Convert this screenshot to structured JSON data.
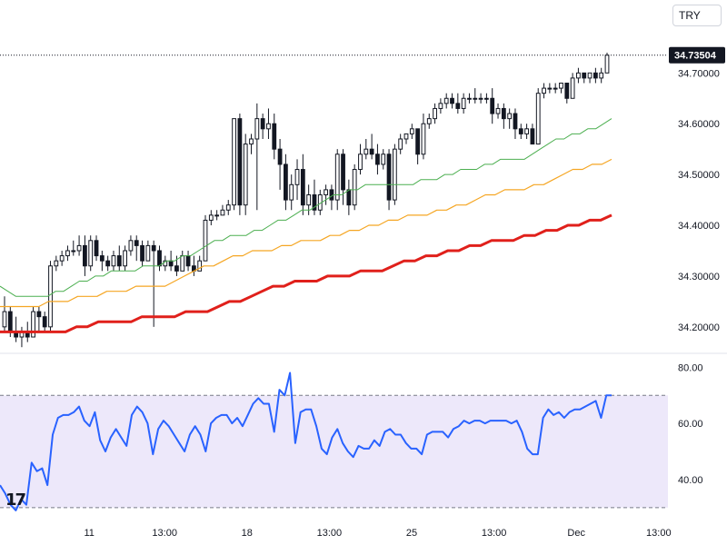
{
  "header": {
    "currency": "TRY"
  },
  "chart_data": {
    "type": "candlestick",
    "price_panel": {
      "y_ticks": [
        "34.70000",
        "34.60000",
        "34.50000",
        "34.40000",
        "34.30000",
        "34.20000"
      ],
      "y_tick_values": [
        34.7,
        34.6,
        34.5,
        34.4,
        34.3,
        34.2
      ],
      "ylim": [
        34.155,
        34.79
      ],
      "last_price_label": "34.73504",
      "last_price": 34.73504,
      "candles": [
        [
          34.2,
          34.26,
          34.19,
          34.23
        ],
        [
          34.23,
          34.24,
          34.18,
          34.19
        ],
        [
          34.19,
          34.22,
          34.17,
          34.18
        ],
        [
          34.18,
          34.2,
          34.16,
          34.19
        ],
        [
          34.19,
          34.21,
          34.17,
          34.18
        ],
        [
          34.18,
          34.24,
          34.18,
          34.23
        ],
        [
          34.23,
          34.24,
          34.19,
          34.22
        ],
        [
          34.22,
          34.23,
          34.19,
          34.2
        ],
        [
          34.2,
          34.33,
          34.19,
          34.32
        ],
        [
          34.32,
          34.34,
          34.31,
          34.33
        ],
        [
          34.33,
          34.35,
          34.32,
          34.34
        ],
        [
          34.34,
          34.36,
          34.33,
          34.35
        ],
        [
          34.35,
          34.37,
          34.34,
          34.35
        ],
        [
          34.35,
          34.38,
          34.34,
          34.36
        ],
        [
          34.36,
          34.38,
          34.3,
          34.32
        ],
        [
          34.32,
          34.38,
          34.31,
          34.37
        ],
        [
          34.37,
          34.38,
          34.33,
          34.34
        ],
        [
          34.34,
          34.35,
          34.31,
          34.33
        ],
        [
          34.33,
          34.34,
          34.31,
          34.32
        ],
        [
          34.32,
          34.35,
          34.31,
          34.34
        ],
        [
          34.34,
          34.36,
          34.31,
          34.32
        ],
        [
          34.32,
          34.36,
          34.31,
          34.35
        ],
        [
          34.35,
          34.38,
          34.34,
          34.37
        ],
        [
          34.37,
          34.38,
          34.33,
          34.36
        ],
        [
          34.36,
          34.37,
          34.32,
          34.33
        ],
        [
          34.33,
          34.37,
          34.33,
          34.36
        ],
        [
          34.36,
          34.37,
          34.2,
          34.35
        ],
        [
          34.35,
          34.36,
          34.31,
          34.32
        ],
        [
          34.32,
          34.34,
          34.31,
          34.33
        ],
        [
          34.33,
          34.35,
          34.31,
          34.32
        ],
        [
          34.32,
          34.34,
          34.3,
          34.31
        ],
        [
          34.31,
          34.35,
          34.31,
          34.34
        ],
        [
          34.34,
          34.35,
          34.31,
          34.32
        ],
        [
          34.32,
          34.34,
          34.3,
          34.31
        ],
        [
          34.31,
          34.34,
          34.31,
          34.33
        ],
        [
          34.33,
          34.42,
          34.33,
          34.41
        ],
        [
          34.41,
          34.43,
          34.4,
          34.42
        ],
        [
          34.42,
          34.43,
          34.41,
          34.42
        ],
        [
          34.42,
          34.44,
          34.42,
          34.43
        ],
        [
          34.43,
          34.45,
          34.42,
          34.44
        ],
        [
          34.44,
          34.61,
          34.43,
          34.61
        ],
        [
          34.61,
          34.62,
          34.42,
          34.44
        ],
        [
          34.44,
          34.58,
          34.42,
          34.56
        ],
        [
          34.56,
          34.58,
          34.54,
          34.57
        ],
        [
          34.57,
          34.64,
          34.43,
          34.61
        ],
        [
          34.61,
          34.62,
          34.57,
          34.59
        ],
        [
          34.59,
          34.63,
          34.57,
          34.6
        ],
        [
          34.6,
          34.62,
          34.53,
          34.55
        ],
        [
          34.55,
          34.57,
          34.47,
          34.52
        ],
        [
          34.52,
          34.54,
          34.43,
          34.45
        ],
        [
          34.45,
          34.5,
          34.43,
          34.48
        ],
        [
          34.48,
          34.53,
          34.45,
          34.51
        ],
        [
          34.51,
          34.54,
          34.42,
          34.44
        ],
        [
          34.44,
          34.48,
          34.42,
          34.46
        ],
        [
          34.46,
          34.49,
          34.42,
          34.43
        ],
        [
          34.43,
          34.47,
          34.42,
          34.46
        ],
        [
          34.46,
          34.48,
          34.44,
          34.47
        ],
        [
          34.47,
          34.48,
          34.43,
          34.45
        ],
        [
          34.45,
          34.55,
          34.43,
          34.54
        ],
        [
          34.54,
          34.55,
          34.44,
          34.47
        ],
        [
          34.47,
          34.49,
          34.42,
          34.44
        ],
        [
          34.44,
          34.52,
          34.43,
          34.51
        ],
        [
          34.51,
          34.56,
          34.5,
          34.54
        ],
        [
          34.54,
          34.57,
          34.53,
          34.55
        ],
        [
          34.55,
          34.58,
          34.53,
          34.54
        ],
        [
          34.54,
          34.56,
          34.5,
          34.52
        ],
        [
          34.52,
          34.55,
          34.51,
          34.54
        ],
        [
          34.54,
          34.55,
          34.43,
          34.45
        ],
        [
          34.45,
          34.56,
          34.44,
          34.55
        ],
        [
          34.55,
          34.58,
          34.54,
          34.57
        ],
        [
          34.57,
          34.58,
          34.56,
          34.58
        ],
        [
          34.58,
          34.6,
          34.57,
          34.59
        ],
        [
          34.59,
          34.59,
          34.52,
          34.54
        ],
        [
          34.54,
          34.62,
          34.53,
          34.6
        ],
        [
          34.6,
          34.62,
          34.59,
          34.61
        ],
        [
          34.61,
          34.64,
          34.6,
          34.63
        ],
        [
          34.63,
          34.65,
          34.62,
          34.64
        ],
        [
          34.64,
          34.66,
          34.63,
          34.65
        ],
        [
          34.65,
          34.66,
          34.63,
          34.64
        ],
        [
          34.64,
          34.66,
          34.62,
          34.63
        ],
        [
          34.63,
          34.66,
          34.62,
          34.65
        ],
        [
          34.65,
          34.66,
          34.64,
          34.65
        ],
        [
          34.65,
          34.67,
          34.64,
          34.65
        ],
        [
          34.65,
          34.66,
          34.64,
          34.65
        ],
        [
          34.65,
          34.66,
          34.64,
          34.65
        ],
        [
          34.65,
          34.67,
          34.6,
          34.62
        ],
        [
          34.62,
          34.64,
          34.61,
          34.63
        ],
        [
          34.63,
          34.64,
          34.59,
          34.61
        ],
        [
          34.61,
          34.63,
          34.59,
          34.62
        ],
        [
          34.62,
          34.63,
          34.57,
          34.59
        ],
        [
          34.59,
          34.6,
          34.57,
          34.58
        ],
        [
          34.58,
          34.6,
          34.57,
          34.59
        ],
        [
          34.59,
          34.6,
          34.56,
          34.56
        ],
        [
          34.56,
          34.67,
          34.56,
          34.66
        ],
        [
          34.66,
          34.68,
          34.65,
          34.67
        ],
        [
          34.67,
          34.68,
          34.66,
          34.67
        ],
        [
          34.67,
          34.68,
          34.66,
          34.67
        ],
        [
          34.67,
          34.68,
          34.66,
          34.68
        ],
        [
          34.68,
          34.68,
          34.64,
          34.65
        ],
        [
          34.65,
          34.7,
          34.65,
          34.69
        ],
        [
          34.69,
          34.71,
          34.68,
          34.7
        ],
        [
          34.7,
          34.7,
          34.68,
          34.69
        ],
        [
          34.69,
          34.7,
          34.68,
          34.7
        ],
        [
          34.7,
          34.71,
          34.68,
          34.69
        ],
        [
          34.69,
          34.71,
          34.68,
          34.7
        ],
        [
          34.7,
          34.74,
          34.7,
          34.735
        ]
      ],
      "ma_short": {
        "name": "",
        "color": "#4caf50",
        "values": [
          34.28,
          34.27,
          34.26,
          34.26,
          34.26,
          34.26,
          34.26,
          34.27,
          34.27,
          34.28,
          34.29,
          34.29,
          34.3,
          34.3,
          34.31,
          34.31,
          34.31,
          34.31,
          34.32,
          34.32,
          34.32,
          34.33,
          34.33,
          34.34,
          34.34,
          34.35,
          34.36,
          34.37,
          34.37,
          34.38,
          34.38,
          34.38,
          34.39,
          34.39,
          34.4,
          34.41,
          34.41,
          34.42,
          34.43,
          34.43,
          34.44,
          34.45,
          34.46,
          34.46,
          34.47,
          34.47,
          34.48,
          34.48,
          34.48,
          34.48,
          34.48,
          34.48,
          34.48,
          34.49,
          34.49,
          34.49,
          34.5,
          34.5,
          34.51,
          34.51,
          34.51,
          34.52,
          34.52,
          34.53,
          34.53,
          34.53,
          34.53,
          34.54,
          34.55,
          34.56,
          34.57,
          34.57,
          34.58,
          34.58,
          34.59,
          34.59,
          34.6,
          34.61
        ]
      },
      "ma_mid": {
        "name": "",
        "color": "#f5a623",
        "values": [
          34.24,
          34.24,
          34.24,
          34.24,
          34.24,
          34.25,
          34.25,
          34.25,
          34.26,
          34.26,
          34.26,
          34.27,
          34.27,
          34.27,
          34.28,
          34.28,
          34.28,
          34.28,
          34.29,
          34.3,
          34.31,
          34.32,
          34.32,
          34.33,
          34.34,
          34.34,
          34.35,
          34.35,
          34.35,
          34.36,
          34.36,
          34.37,
          34.37,
          34.37,
          34.38,
          34.38,
          34.39,
          34.39,
          34.4,
          34.4,
          34.41,
          34.41,
          34.42,
          34.42,
          34.42,
          34.43,
          34.43,
          34.44,
          34.44,
          34.45,
          34.46,
          34.46,
          34.47,
          34.47,
          34.47,
          34.48,
          34.48,
          34.49,
          34.5,
          34.51,
          34.51,
          34.52,
          34.52,
          34.53
        ]
      },
      "ma_long": {
        "name": "",
        "color": "#e0201b",
        "values": [
          34.19,
          34.19,
          34.19,
          34.19,
          34.19,
          34.19,
          34.19,
          34.2,
          34.2,
          34.21,
          34.21,
          34.21,
          34.21,
          34.22,
          34.22,
          34.22,
          34.22,
          34.23,
          34.23,
          34.23,
          34.24,
          34.25,
          34.25,
          34.26,
          34.27,
          34.28,
          34.28,
          34.29,
          34.29,
          34.29,
          34.3,
          34.3,
          34.3,
          34.31,
          34.31,
          34.31,
          34.32,
          34.33,
          34.33,
          34.34,
          34.34,
          34.35,
          34.35,
          34.36,
          34.36,
          34.37,
          34.37,
          34.37,
          34.38,
          34.38,
          34.39,
          34.39,
          34.4,
          34.4,
          34.41,
          34.41,
          34.42
        ]
      }
    },
    "rsi_panel": {
      "y_ticks": [
        "80.00",
        "60.00",
        "40.00"
      ],
      "y_tick_values": [
        80,
        60,
        40
      ],
      "ylim": [
        28,
        84
      ],
      "band": [
        70,
        30
      ],
      "color": "#2962ff",
      "band_color": "#ede8fa",
      "values": [
        38,
        35,
        31,
        29,
        33,
        31,
        46,
        43,
        44,
        38,
        56,
        62,
        63,
        63,
        64,
        66,
        61,
        59,
        64,
        54,
        50,
        55,
        58,
        55,
        52,
        63,
        66,
        64,
        60,
        49,
        58,
        61,
        59,
        56,
        53,
        50,
        56,
        59,
        56,
        50,
        60,
        62,
        63,
        63,
        60,
        62,
        59,
        63,
        67,
        69,
        67,
        67,
        57,
        72,
        70,
        78,
        53,
        64,
        65,
        65,
        59,
        51,
        49,
        55,
        58,
        53,
        50,
        48,
        52,
        51,
        51,
        54,
        52,
        57,
        58,
        56,
        56,
        53,
        51,
        51,
        49,
        56,
        57,
        57,
        57,
        55,
        58,
        59,
        61,
        60,
        61,
        61,
        60,
        61,
        61,
        61,
        61,
        60,
        61,
        57,
        51,
        49,
        49,
        62,
        65,
        63,
        64,
        62,
        64,
        65,
        65,
        66,
        67,
        68,
        62,
        70,
        70
      ]
    },
    "x_ticks": [
      {
        "label": "11",
        "x_index": 0.13
      },
      {
        "label": "13:00",
        "x_index": 0.24
      },
      {
        "label": "18",
        "x_index": 0.36
      },
      {
        "label": "13:00",
        "x_index": 0.48
      },
      {
        "label": "25",
        "x_index": 0.6
      },
      {
        "label": "13:00",
        "x_index": 0.72
      },
      {
        "label": "Dec",
        "x_index": 0.84
      },
      {
        "label": "13:00",
        "x_index": 0.96
      }
    ]
  }
}
